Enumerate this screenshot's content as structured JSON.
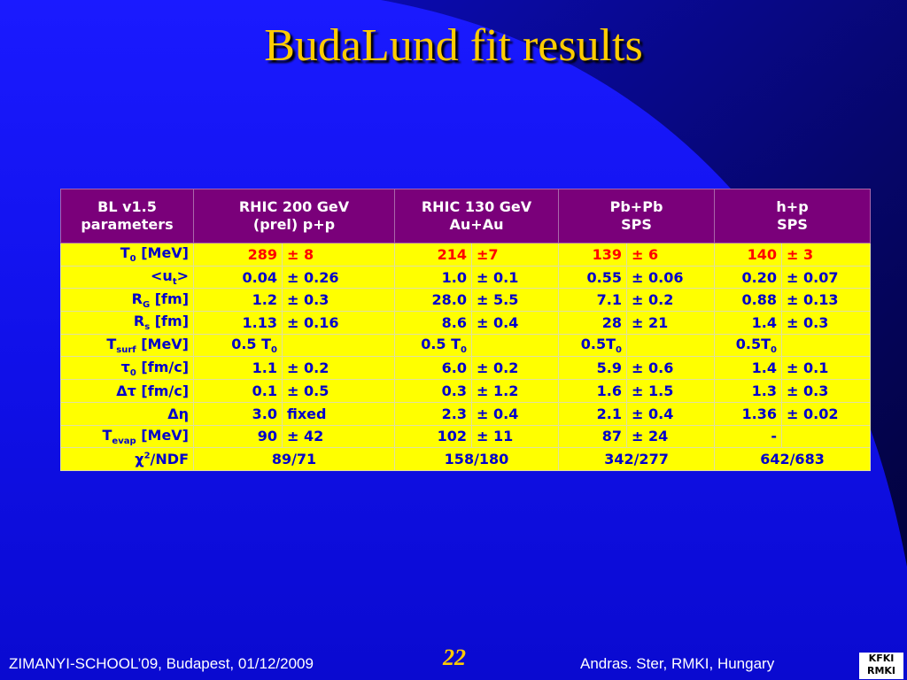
{
  "title": "BudaLund fit results",
  "table": {
    "header": [
      [
        "BL v1.5",
        "parameters"
      ],
      [
        "RHIC 200 GeV",
        "(prel) p+p"
      ],
      [
        "RHIC 130 GeV",
        "Au+Au"
      ],
      [
        "Pb+Pb",
        "SPS"
      ],
      [
        "h+p",
        "SPS"
      ]
    ],
    "rows": [
      {
        "label": [
          {
            "text": "T"
          },
          {
            "text": "0",
            "style": "sub"
          },
          {
            "text": " [MeV]"
          }
        ],
        "cells": [
          "289",
          "± 8",
          "214",
          "±7",
          "139",
          "± 6",
          "140",
          "± 3"
        ]
      },
      {
        "label": [
          {
            "text": "<u"
          },
          {
            "text": "t",
            "style": "sub"
          },
          {
            "text": ">"
          }
        ],
        "cells": [
          "0.04",
          "± 0.26",
          "1.0",
          "± 0.1",
          "0.55",
          "± 0.06",
          "0.20",
          "± 0.07"
        ]
      },
      {
        "label": [
          {
            "text": "R"
          },
          {
            "text": "G",
            "style": "sub"
          },
          {
            "text": " [fm]"
          }
        ],
        "cells": [
          "1.2",
          "± 0.3",
          "28.0",
          "± 5.5",
          "7.1",
          "± 0.2",
          "0.88",
          "± 0.13"
        ]
      },
      {
        "label": [
          {
            "text": "R"
          },
          {
            "text": "s",
            "style": "sub"
          },
          {
            "text": " [fm]"
          }
        ],
        "cells": [
          "1.13",
          "± 0.16",
          "8.6",
          "± 0.4",
          "28",
          "± 21",
          "1.4",
          "± 0.3"
        ]
      },
      {
        "label": [
          {
            "text": "T"
          },
          {
            "text": "surf",
            "style": "sub"
          },
          {
            "text": " [MeV]"
          }
        ],
        "cells": [
          [
            {
              "text": "0.5 T"
            },
            {
              "text": "0",
              "style": "sub"
            }
          ],
          null,
          [
            {
              "text": "0.5 T"
            },
            {
              "text": "0",
              "style": "sub"
            }
          ],
          null,
          [
            {
              "text": "0.5T"
            },
            {
              "text": "0",
              "style": "sub"
            }
          ],
          null,
          [
            {
              "text": "0.5T"
            },
            {
              "text": "0",
              "style": "sub"
            }
          ],
          null
        ]
      },
      {
        "label": [
          {
            "text": "τ"
          },
          {
            "text": "0",
            "style": "sub"
          },
          {
            "text": " [fm/c]"
          }
        ],
        "cells": [
          "1.1",
          "± 0.2",
          "6.0",
          "± 0.2",
          "5.9",
          "± 0.6",
          "1.4",
          "± 0.1"
        ]
      },
      {
        "label": [
          {
            "text": "Δτ [fm/c]"
          }
        ],
        "cells": [
          "0.1",
          "± 0.5",
          "0.3",
          "± 1.2",
          "1.6",
          "± 1.5",
          "1.3",
          "± 0.3"
        ]
      },
      {
        "label": [
          {
            "text": "Δη"
          }
        ],
        "cells": [
          "3.0",
          "fixed",
          "2.3",
          "± 0.4",
          "2.1",
          "± 0.4",
          "1.36",
          "± 0.02"
        ]
      },
      {
        "label": [
          {
            "text": "T"
          },
          {
            "text": "evap",
            "style": "sub"
          },
          {
            "text": " [MeV]"
          }
        ],
        "cells": [
          "90",
          "± 42",
          "102",
          "± 11",
          "87",
          "± 24",
          "-",
          null
        ]
      },
      {
        "label": [
          {
            "text": "χ"
          },
          {
            "text": "2",
            "style": "sup"
          },
          {
            "text": "/NDF"
          }
        ],
        "cells": [
          "89/71",
          "158/180",
          "342/277",
          "642/683"
        ]
      }
    ]
  },
  "footer": {
    "left": "ZIMANYI-SCHOOL’09, Budapest, 01/12/2009",
    "page": "22",
    "right": "Andras. Ster,  RMKI, Hungary",
    "logo": [
      "KFKI",
      "RMKI"
    ]
  }
}
